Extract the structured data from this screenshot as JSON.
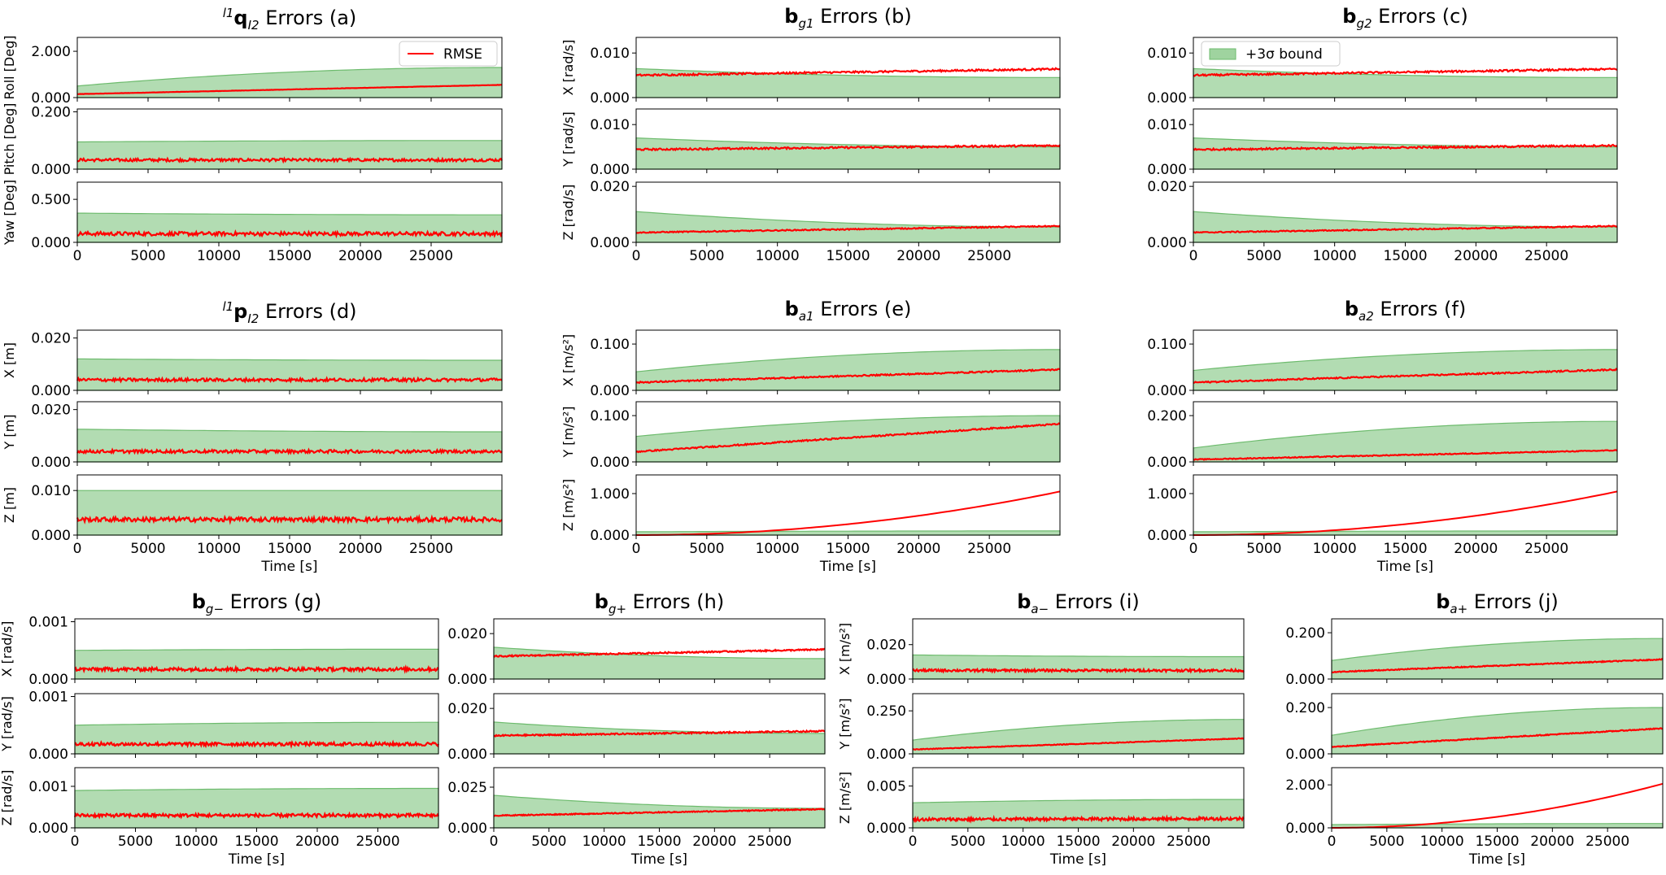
{
  "colors": {
    "rmse": "#ff0000",
    "bound_fill": "#9fd39f",
    "bound_edge": "#6dbb6d"
  },
  "legend": {
    "rmse": "RMSE",
    "bound": "+3σ bound"
  },
  "xlabel": "Time [s]",
  "x_ticks": [
    "0",
    "5000",
    "10000",
    "15000",
    "20000",
    "25000"
  ],
  "chart_data": [
    {
      "id": "a",
      "type": "line",
      "title": {
        "prefix": "l1",
        "main": "q",
        "sub": "I2",
        "suffix": " Errors (a)"
      },
      "legend": "rmse",
      "x_range": [
        0,
        30000
      ],
      "x_ticks": [
        "0",
        "5000",
        "10000",
        "15000",
        "20000",
        "25000"
      ],
      "xlabel": "",
      "axes": [
        {
          "ylabel": "Roll [Deg]",
          "ylim": [
            0,
            2.6
          ],
          "yticks": [
            "0.000",
            "2.000"
          ],
          "yvals": [
            0,
            2
          ],
          "bound": [
            0.5,
            1.3
          ],
          "rmse": [
            0.15,
            0.55
          ],
          "noise": 0.005
        },
        {
          "ylabel": "Pitch [Deg]",
          "ylim": [
            0,
            0.21
          ],
          "yticks": [
            "0.000",
            "0.200"
          ],
          "yvals": [
            0,
            0.2
          ],
          "bound": [
            0.095,
            0.1
          ],
          "rmse": [
            0.032,
            0.032
          ],
          "noise": 0.005
        },
        {
          "ylabel": "Yaw [Deg]",
          "ylim": [
            0,
            0.7
          ],
          "yticks": [
            "0.000",
            "0.500"
          ],
          "yvals": [
            0,
            0.5
          ],
          "bound": [
            0.34,
            0.32
          ],
          "rmse": [
            0.1,
            0.1
          ],
          "noise": 0.022
        }
      ]
    },
    {
      "id": "b",
      "type": "line",
      "title": {
        "prefix": "",
        "main": "b",
        "sub": "g1",
        "suffix": " Errors (b)"
      },
      "x_range": [
        0,
        30000
      ],
      "x_ticks": [
        "0",
        "5000",
        "10000",
        "15000",
        "20000",
        "25000"
      ],
      "xlabel": "",
      "axes": [
        {
          "ylabel": "X [rad/s]",
          "ylim": [
            0,
            0.0135
          ],
          "yticks": [
            "0.000",
            "0.010"
          ],
          "yvals": [
            0,
            0.01
          ],
          "bound": [
            0.0065,
            0.0045
          ],
          "rmse": [
            0.005,
            0.0064
          ],
          "noise": 0.0002
        },
        {
          "ylabel": "Y [rad/s]",
          "ylim": [
            0,
            0.0135
          ],
          "yticks": [
            "0.000",
            "0.010"
          ],
          "yvals": [
            0,
            0.01
          ],
          "bound": [
            0.007,
            0.005
          ],
          "rmse": [
            0.0044,
            0.0053
          ],
          "noise": 0.0002
        },
        {
          "ylabel": "Z [rad/s]",
          "ylim": [
            0,
            0.0215
          ],
          "yticks": [
            "0.000",
            "0.020"
          ],
          "yvals": [
            0,
            0.02
          ],
          "bound": [
            0.011,
            0.0055
          ],
          "rmse": [
            0.0035,
            0.0058
          ],
          "noise": 0.0002
        }
      ]
    },
    {
      "id": "c",
      "type": "line",
      "title": {
        "prefix": "",
        "main": "b",
        "sub": "g2",
        "suffix": " Errors (c)"
      },
      "legend": "bound",
      "x_range": [
        0,
        30000
      ],
      "x_ticks": [
        "0",
        "5000",
        "10000",
        "15000",
        "20000",
        "25000"
      ],
      "xlabel": "",
      "axes": [
        {
          "ylabel": "",
          "ylim": [
            0,
            0.0135
          ],
          "yticks": [
            "0.000",
            "0.010"
          ],
          "yvals": [
            0,
            0.01
          ],
          "bound": [
            0.0065,
            0.0045
          ],
          "rmse": [
            0.005,
            0.0064
          ],
          "noise": 0.0002
        },
        {
          "ylabel": "",
          "ylim": [
            0,
            0.0135
          ],
          "yticks": [
            "0.000",
            "0.010"
          ],
          "yvals": [
            0,
            0.01
          ],
          "bound": [
            0.007,
            0.005
          ],
          "rmse": [
            0.0044,
            0.0053
          ],
          "noise": 0.0002
        },
        {
          "ylabel": "",
          "ylim": [
            0,
            0.0215
          ],
          "yticks": [
            "0.000",
            "0.020"
          ],
          "yvals": [
            0,
            0.02
          ],
          "bound": [
            0.011,
            0.0055
          ],
          "rmse": [
            0.0035,
            0.0058
          ],
          "noise": 0.0002
        }
      ]
    },
    {
      "id": "d",
      "type": "line",
      "title": {
        "prefix": "l1",
        "main": "p",
        "sub": "I2",
        "suffix": " Errors (d)"
      },
      "x_range": [
        0,
        30000
      ],
      "x_ticks": [
        "0",
        "5000",
        "10000",
        "15000",
        "20000",
        "25000"
      ],
      "xlabel": "Time [s]",
      "axes": [
        {
          "ylabel": "X [m]",
          "ylim": [
            0,
            0.023
          ],
          "yticks": [
            "0.000",
            "0.020"
          ],
          "yvals": [
            0,
            0.02
          ],
          "bound": [
            0.012,
            0.0115
          ],
          "rmse": [
            0.004,
            0.004
          ],
          "noise": 0.0006
        },
        {
          "ylabel": "Y [m]",
          "ylim": [
            0,
            0.023
          ],
          "yticks": [
            "0.000",
            "0.020"
          ],
          "yvals": [
            0,
            0.02
          ],
          "bound": [
            0.0125,
            0.0115
          ],
          "rmse": [
            0.004,
            0.004
          ],
          "noise": 0.0006
        },
        {
          "ylabel": "Z [m]",
          "ylim": [
            0,
            0.0135
          ],
          "yticks": [
            "0.000",
            "0.010"
          ],
          "yvals": [
            0,
            0.01
          ],
          "bound": [
            0.01,
            0.01
          ],
          "rmse": [
            0.0035,
            0.0035
          ],
          "noise": 0.0005
        }
      ]
    },
    {
      "id": "e",
      "type": "line",
      "title": {
        "prefix": "",
        "main": "b",
        "sub": "a1",
        "suffix": " Errors (e)"
      },
      "x_range": [
        0,
        30000
      ],
      "x_ticks": [
        "0",
        "5000",
        "10000",
        "15000",
        "20000",
        "25000"
      ],
      "xlabel": "Time [s]",
      "axes": [
        {
          "ylabel": "X [m/s²]",
          "ylim": [
            0,
            0.13
          ],
          "yticks": [
            "0.000",
            "0.100"
          ],
          "yvals": [
            0,
            0.1
          ],
          "bound": [
            0.04,
            0.088
          ],
          "rmse": [
            0.017,
            0.045
          ],
          "noise": 0.0015
        },
        {
          "ylabel": "Y [m/s²]",
          "ylim": [
            0,
            0.13
          ],
          "yticks": [
            "0.000",
            "0.100"
          ],
          "yvals": [
            0,
            0.1
          ],
          "bound": [
            0.055,
            0.1
          ],
          "rmse": [
            0.022,
            0.082
          ],
          "noise": 0.0015
        },
        {
          "ylabel": "Z [m/s²]",
          "ylim": [
            0,
            1.45
          ],
          "yticks": [
            "0.000",
            "1.000"
          ],
          "yvals": [
            0,
            1
          ],
          "bound": [
            0.08,
            0.1
          ],
          "rmse": [
            0.0,
            1.05
          ],
          "quad": true,
          "noise": 0
        }
      ]
    },
    {
      "id": "f",
      "type": "line",
      "title": {
        "prefix": "",
        "main": "b",
        "sub": "a2",
        "suffix": " Errors (f)"
      },
      "x_range": [
        0,
        30000
      ],
      "x_ticks": [
        "0",
        "5000",
        "10000",
        "15000",
        "20000",
        "25000"
      ],
      "xlabel": "Time [s]",
      "axes": [
        {
          "ylabel": "",
          "ylim": [
            0,
            0.13
          ],
          "yticks": [
            "0.000",
            "0.100"
          ],
          "yvals": [
            0,
            0.1
          ],
          "bound": [
            0.043,
            0.088
          ],
          "rmse": [
            0.017,
            0.045
          ],
          "noise": 0.0015
        },
        {
          "ylabel": "",
          "ylim": [
            0,
            0.26
          ],
          "yticks": [
            "0.000",
            "0.200"
          ],
          "yvals": [
            0,
            0.2
          ],
          "bound": [
            0.06,
            0.175
          ],
          "rmse": [
            0.01,
            0.05
          ],
          "noise": 0.002
        },
        {
          "ylabel": "",
          "ylim": [
            0,
            1.45
          ],
          "yticks": [
            "0.000",
            "1.000"
          ],
          "yvals": [
            0,
            1
          ],
          "bound": [
            0.08,
            0.1
          ],
          "rmse": [
            0.0,
            1.05
          ],
          "quad": true,
          "noise": 0
        }
      ]
    },
    {
      "id": "g",
      "type": "line",
      "title": {
        "prefix": "",
        "main": "b",
        "sub": "g−",
        "suffix": " Errors (g)"
      },
      "x_range": [
        0,
        30000
      ],
      "x_ticks": [
        "0",
        "5000",
        "10000",
        "15000",
        "20000",
        "25000"
      ],
      "xlabel": "Time [s]",
      "axes": [
        {
          "ylabel": "X [rad/s]",
          "ylim": [
            0,
            0.00105
          ],
          "yticks": [
            "0.000",
            "0.001"
          ],
          "yvals": [
            0,
            0.001
          ],
          "bound": [
            0.0005,
            0.00052
          ],
          "rmse": [
            0.00017,
            0.00017
          ],
          "noise": 3e-05
        },
        {
          "ylabel": "Y [rad/s]",
          "ylim": [
            0,
            0.00105
          ],
          "yticks": [
            "0.000",
            "0.001"
          ],
          "yvals": [
            0,
            0.001
          ],
          "bound": [
            0.0005,
            0.00055
          ],
          "rmse": [
            0.00017,
            0.00017
          ],
          "noise": 3e-05
        },
        {
          "ylabel": "Z [rad/s]",
          "ylim": [
            0,
            0.00145
          ],
          "yticks": [
            "0.000",
            "0.001"
          ],
          "yvals": [
            0,
            0.001
          ],
          "bound": [
            0.0009,
            0.00095
          ],
          "rmse": [
            0.0003,
            0.0003
          ],
          "noise": 4e-05
        }
      ]
    },
    {
      "id": "h",
      "type": "line",
      "title": {
        "prefix": "",
        "main": "b",
        "sub": "g+",
        "suffix": " Errors (h)"
      },
      "x_range": [
        0,
        30000
      ],
      "x_ticks": [
        "0",
        "5000",
        "10000",
        "15000",
        "20000",
        "25000"
      ],
      "xlabel": "Time [s]",
      "axes": [
        {
          "ylabel": "",
          "ylim": [
            0,
            0.0265
          ],
          "yticks": [
            "0.000",
            "0.020"
          ],
          "yvals": [
            0,
            0.02
          ],
          "bound": [
            0.014,
            0.009
          ],
          "rmse": [
            0.01,
            0.013
          ],
          "noise": 0.0003
        },
        {
          "ylabel": "",
          "ylim": [
            0,
            0.0265
          ],
          "yticks": [
            "0.000",
            "0.020"
          ],
          "yvals": [
            0,
            0.02
          ],
          "bound": [
            0.014,
            0.009
          ],
          "rmse": [
            0.008,
            0.01
          ],
          "noise": 0.0003
        },
        {
          "ylabel": "",
          "ylim": [
            0,
            0.037
          ],
          "yticks": [
            "0.000",
            "0.025"
          ],
          "yvals": [
            0,
            0.025
          ],
          "bound": [
            0.02,
            0.012
          ],
          "rmse": [
            0.0075,
            0.0115
          ],
          "noise": 0.0003
        }
      ]
    },
    {
      "id": "i",
      "type": "line",
      "title": {
        "prefix": "",
        "main": "b",
        "sub": "a−",
        "suffix": " Errors (i)"
      },
      "x_range": [
        0,
        30000
      ],
      "x_ticks": [
        "0",
        "5000",
        "10000",
        "15000",
        "20000",
        "25000"
      ],
      "xlabel": "Time [s]",
      "axes": [
        {
          "ylabel": "X [m/s²]",
          "ylim": [
            0,
            0.035
          ],
          "yticks": [
            "0.000",
            "0.020"
          ],
          "yvals": [
            0,
            0.02
          ],
          "bound": [
            0.014,
            0.013
          ],
          "rmse": [
            0.005,
            0.005
          ],
          "noise": 0.0007
        },
        {
          "ylabel": "Y [m/s²]",
          "ylim": [
            0,
            0.35
          ],
          "yticks": [
            "0.000",
            "0.250"
          ],
          "yvals": [
            0,
            0.25
          ],
          "bound": [
            0.08,
            0.2
          ],
          "rmse": [
            0.025,
            0.09
          ],
          "noise": 0.002
        },
        {
          "ylabel": "Z [m/s²]",
          "ylim": [
            0,
            0.0072
          ],
          "yticks": [
            "0.000",
            "0.005"
          ],
          "yvals": [
            0,
            0.005
          ],
          "bound": [
            0.003,
            0.0034
          ],
          "rmse": [
            0.001,
            0.0011
          ],
          "noise": 0.00018
        }
      ]
    },
    {
      "id": "j",
      "type": "line",
      "title": {
        "prefix": "",
        "main": "b",
        "sub": "a+",
        "suffix": " Errors (j)"
      },
      "x_range": [
        0,
        30000
      ],
      "x_ticks": [
        "0",
        "5000",
        "10000",
        "15000",
        "20000",
        "25000"
      ],
      "xlabel": "Time [s]",
      "axes": [
        {
          "ylabel": "",
          "ylim": [
            0,
            0.26
          ],
          "yticks": [
            "0.000",
            "0.200"
          ],
          "yvals": [
            0,
            0.2
          ],
          "bound": [
            0.08,
            0.175
          ],
          "rmse": [
            0.03,
            0.085
          ],
          "noise": 0.002
        },
        {
          "ylabel": "",
          "ylim": [
            0,
            0.26
          ],
          "yticks": [
            "0.000",
            "0.200"
          ],
          "yvals": [
            0,
            0.2
          ],
          "bound": [
            0.08,
            0.2
          ],
          "rmse": [
            0.03,
            0.11
          ],
          "noise": 0.002
        },
        {
          "ylabel": "",
          "ylim": [
            0,
            2.8
          ],
          "yticks": [
            "0.000",
            "2.000"
          ],
          "yvals": [
            0,
            2
          ],
          "bound": [
            0.15,
            0.2
          ],
          "rmse": [
            0.0,
            2.05
          ],
          "quad": true,
          "noise": 0
        }
      ]
    }
  ]
}
